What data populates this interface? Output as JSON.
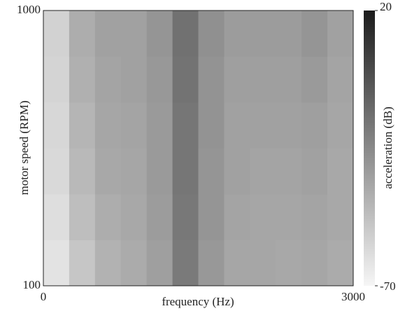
{
  "chart_data": {
    "type": "heatmap",
    "xlabel": "frequency (Hz)",
    "ylabel": "motor speed (RPM)",
    "colorbar_label": "acceleration (dB)",
    "x": [
      125,
      375,
      625,
      875,
      1125,
      1375,
      1625,
      1875,
      2125,
      2375,
      2625,
      2875
    ],
    "y": [
      175,
      325,
      475,
      625,
      775,
      925
    ],
    "z": [
      [
        -62,
        -50,
        -42,
        -39,
        -34,
        -19,
        -31,
        -37,
        -37,
        -38,
        -37,
        -39
      ],
      [
        -60,
        -47,
        -40,
        -38,
        -33,
        -18,
        -30,
        -36,
        -37,
        -37,
        -36,
        -38
      ],
      [
        -58,
        -45,
        -38,
        -37,
        -32,
        -17,
        -30,
        -35,
        -36,
        -36,
        -35,
        -38
      ],
      [
        -57,
        -43,
        -37,
        -36,
        -32,
        -17,
        -29,
        -35,
        -35,
        -35,
        -34,
        -37
      ],
      [
        -56,
        -41,
        -36,
        -35,
        -31,
        -16,
        -29,
        -34,
        -34,
        -34,
        -32,
        -36
      ],
      [
        -55,
        -40,
        -35,
        -35,
        -30,
        -15,
        -28,
        -33,
        -33,
        -33,
        -30,
        -35
      ]
    ],
    "xlim": [
      0,
      3000
    ],
    "xticks": [
      0,
      3000
    ],
    "ylim": [
      100,
      1000
    ],
    "yticks": [
      100,
      1000
    ],
    "zlim": [
      -70,
      20
    ],
    "zticks": [
      -70,
      20
    ],
    "colormap": [
      "#f6f6f6",
      "#1c1c1c"
    ]
  }
}
